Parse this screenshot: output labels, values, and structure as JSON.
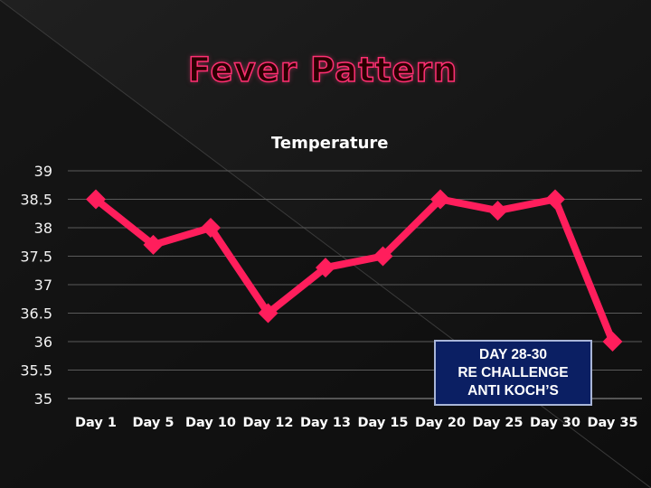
{
  "slide": {
    "title": "Fever Pattern"
  },
  "chart_data": {
    "type": "line",
    "title": "Temperature",
    "categories": [
      "Day 1",
      "Day 5",
      "Day 10",
      "Day 12",
      "Day 13",
      "Day 15",
      "Day 20",
      "Day 25",
      "Day 30",
      "Day 35"
    ],
    "series": [
      {
        "values": [
          38.5,
          37.7,
          38.0,
          36.5,
          37.3,
          37.5,
          38.5,
          38.3,
          38.5,
          36.0
        ],
        "color": "#ff1e5c"
      }
    ],
    "ylim": [
      35,
      39
    ],
    "yticks": [
      "35",
      "35.5",
      "36",
      "36.5",
      "37",
      "37.5",
      "38",
      "38.5",
      "39"
    ],
    "grid": true,
    "annotation": {
      "lines": [
        "DAY 28-30",
        "RE CHALLENGE",
        "ANTI KOCH’S"
      ]
    }
  },
  "colors": {
    "background": "#111111",
    "line": "#ff1e5c",
    "title_outline": "#ff2f73",
    "annotation_bg": "#0b1f63"
  }
}
